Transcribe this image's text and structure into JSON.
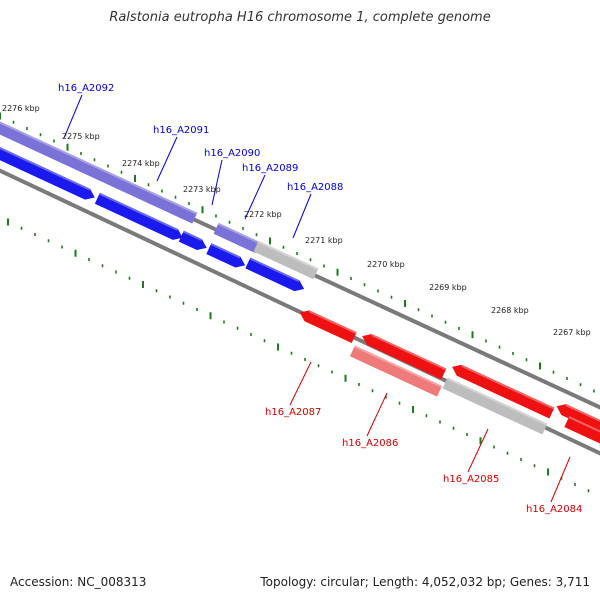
{
  "title": "Ralstonia eutropha H16 chromosome 1, complete genome",
  "footer": {
    "accession": "Accession: NC_008313",
    "summary": "Topology: circular; Length: 4,052,032 bp; Genes: 3,711"
  },
  "colors": {
    "forward_gene": "#1a1aee",
    "forward_gene_light": "#7b72d8",
    "reverse_gene": "#ee1111",
    "reverse_gene_light": "#ee7a7a",
    "gray_gene": "#bdbdbd",
    "backbone": "#777777",
    "tick": "#1f7a1f",
    "forward_label": "#0000cc",
    "reverse_label": "#cc0000"
  },
  "kbp_labels": [
    "2276 kbp",
    "2275 kbp",
    "2274 kbp",
    "2273 kbp",
    "2272 kbp",
    "2271 kbp",
    "2270 kbp",
    "2269 kbp",
    "2268 kbp",
    "2267 kbp"
  ],
  "forward_genes": [
    "h16_A2092",
    "h16_A2091",
    "h16_A2090",
    "h16_A2089",
    "h16_A2088"
  ],
  "reverse_genes": [
    "h16_A2087",
    "h16_A2086",
    "h16_A2085",
    "h16_A2084"
  ]
}
